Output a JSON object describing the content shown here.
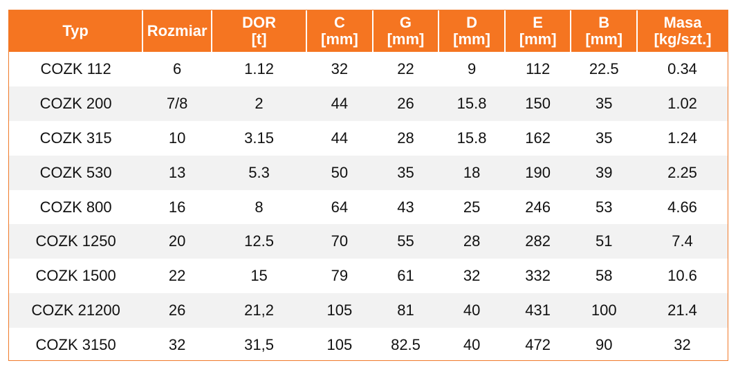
{
  "colors": {
    "header_bg": "#f57521",
    "header_text": "#ffffff",
    "row_alt": "#f2f2f2",
    "border": "#f07a2a"
  },
  "table": {
    "headers": [
      {
        "line1": "Typ",
        "line2": ""
      },
      {
        "line1": "Rozmiar",
        "line2": ""
      },
      {
        "line1": "DOR",
        "line2": "[t]"
      },
      {
        "line1": "C",
        "line2": "[mm]"
      },
      {
        "line1": "G",
        "line2": "[mm]"
      },
      {
        "line1": "D",
        "line2": "[mm]"
      },
      {
        "line1": "E",
        "line2": "[mm]"
      },
      {
        "line1": "B",
        "line2": "[mm]"
      },
      {
        "line1": "Masa",
        "line2": "[kg/szt.]"
      }
    ],
    "rows": [
      [
        "COZK 112",
        "6",
        "1.12",
        "32",
        "22",
        "9",
        "112",
        "22.5",
        "0.34"
      ],
      [
        "COZK 200",
        "7/8",
        "2",
        "44",
        "26",
        "15.8",
        "150",
        "35",
        "1.02"
      ],
      [
        "COZK 315",
        "10",
        "3.15",
        "44",
        "28",
        "15.8",
        "162",
        "35",
        "1.24"
      ],
      [
        "COZK 530",
        "13",
        "5.3",
        "50",
        "35",
        "18",
        "190",
        "39",
        "2.25"
      ],
      [
        "COZK 800",
        "16",
        "8",
        "64",
        "43",
        "25",
        "246",
        "53",
        "4.66"
      ],
      [
        "COZK 1250",
        "20",
        "12.5",
        "70",
        "55",
        "28",
        "282",
        "51",
        "7.4"
      ],
      [
        "COZK 1500",
        "22",
        "15",
        "79",
        "61",
        "32",
        "332",
        "58",
        "10.6"
      ],
      [
        "COZK 21200",
        "26",
        "21,2",
        "105",
        "81",
        "40",
        "431",
        "100",
        "21.4"
      ],
      [
        "COZK 3150",
        "32",
        "31,5",
        "105",
        "82.5",
        "40",
        "472",
        "90",
        "32"
      ]
    ]
  }
}
